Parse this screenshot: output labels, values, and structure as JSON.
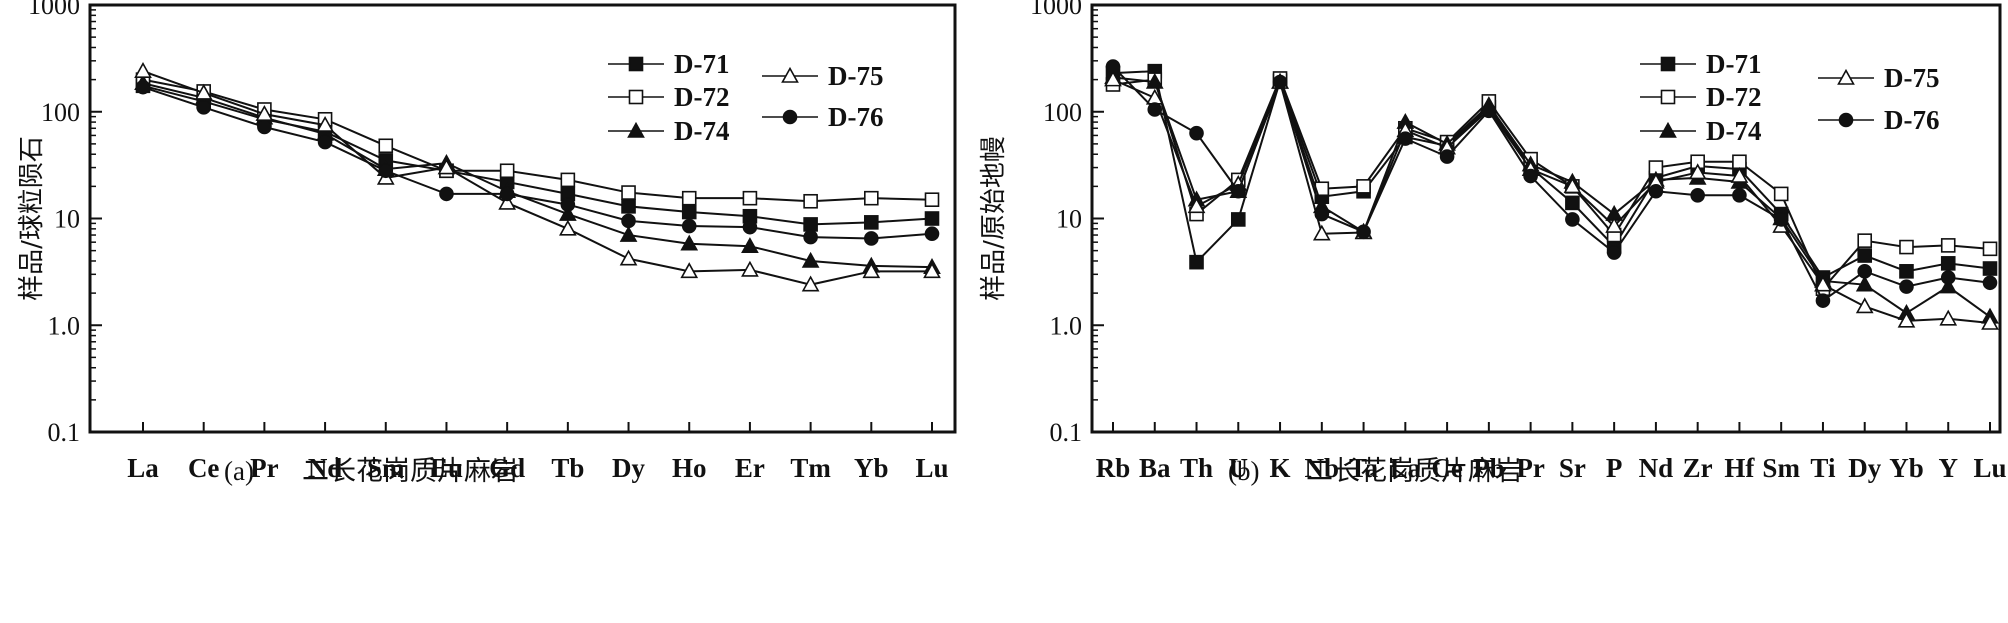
{
  "chart_data": [
    {
      "type": "line",
      "y_scale": "log",
      "ylim": [
        0.1,
        1000
      ],
      "yticks": [
        "0.1",
        "1.0",
        "10",
        "100",
        "1000"
      ],
      "ylabel": "样品/球粒陨石",
      "categories": [
        "La",
        "Ce",
        "Pr",
        "Nd",
        "Sm",
        "Eu",
        "Gd",
        "Tb",
        "Dy",
        "Ho",
        "Er",
        "Tm",
        "Yb",
        "Lu"
      ],
      "annotation": {
        "letter": "(a)",
        "text": "二长花岗质片麻岩"
      },
      "legend_position": "top-right",
      "series": [
        {
          "name": "D-71",
          "marker": "filled-square",
          "values": [
            175,
            125,
            85,
            65,
            35,
            28,
            22,
            17,
            13,
            11.5,
            10.5,
            8.8,
            9.2,
            10
          ]
        },
        {
          "name": "D-72",
          "marker": "open-square",
          "values": [
            200,
            155,
            105,
            85,
            48,
            28,
            28,
            23,
            17.5,
            15.5,
            15.5,
            14.5,
            15.5,
            15
          ]
        },
        {
          "name": "D-74",
          "marker": "filled-triangle",
          "values": [
            185,
            135,
            88,
            62,
            29,
            33,
            18,
            11,
            7,
            5.8,
            5.5,
            4,
            3.6,
            3.5
          ]
        },
        {
          "name": "D-75",
          "marker": "open-triangle",
          "values": [
            240,
            150,
            95,
            75,
            24,
            30,
            14,
            8,
            4.2,
            3.2,
            3.3,
            2.4,
            3.2,
            3.2
          ]
        },
        {
          "name": "D-76",
          "marker": "filled-circle",
          "values": [
            170,
            110,
            72,
            52,
            28,
            17,
            17,
            13.5,
            9.5,
            8.5,
            8.3,
            6.7,
            6.5,
            7.2
          ]
        }
      ]
    },
    {
      "type": "line",
      "y_scale": "log",
      "ylim": [
        0.1,
        1000
      ],
      "yticks": [
        "0.1",
        "1.0",
        "10",
        "100",
        "1000"
      ],
      "ylabel": "样品/原始地幔",
      "categories": [
        "Rb",
        "Ba",
        "Th",
        "U",
        "K",
        "Nb",
        "Ta",
        "La",
        "Ce",
        "Pb",
        "Pr",
        "Sr",
        "P",
        "Nd",
        "Zr",
        "Hf",
        "Sm",
        "Ti",
        "Dy",
        "Yb",
        "Y",
        "Lu"
      ],
      "annotation": {
        "letter": "(b)",
        "text": "二长花岗质片麻岩"
      },
      "legend_position": "top-right",
      "series": [
        {
          "name": "D-71",
          "marker": "filled-square",
          "values": [
            230,
            240,
            3.9,
            9.8,
            195,
            16,
            18,
            58,
            48,
            110,
            30,
            14,
            5.5,
            24,
            31,
            29,
            11,
            2.8,
            4.5,
            3.2,
            3.8,
            3.4
          ]
        },
        {
          "name": "D-72",
          "marker": "open-square",
          "values": [
            180,
            200,
            11,
            23,
            205,
            19,
            20,
            70,
            52,
            125,
            36,
            20,
            7,
            30,
            34,
            34,
            17,
            2.2,
            6.2,
            5.4,
            5.6,
            5.2
          ]
        },
        {
          "name": "D-74",
          "marker": "filled-triangle",
          "values": [
            210,
            190,
            15,
            18,
            190,
            13,
            7.5,
            80,
            50,
            115,
            32,
            22,
            11,
            23,
            24,
            22,
            10,
            2.6,
            2.4,
            1.3,
            2.3,
            1.2
          ]
        },
        {
          "name": "D-75",
          "marker": "open-triangle",
          "values": [
            200,
            135,
            13,
            21,
            190,
            7.2,
            7.4,
            67,
            46,
            105,
            29,
            20,
            8.5,
            22,
            27,
            25,
            8.5,
            2.4,
            1.5,
            1.1,
            1.15,
            1.05
          ]
        },
        {
          "name": "D-76",
          "marker": "filled-circle",
          "values": [
            265,
            105,
            63,
            18,
            190,
            11,
            7.5,
            56,
            38,
            102,
            25,
            9.8,
            4.8,
            18,
            16.5,
            16.5,
            9.8,
            1.7,
            3.2,
            2.3,
            2.8,
            2.5
          ]
        }
      ]
    }
  ]
}
